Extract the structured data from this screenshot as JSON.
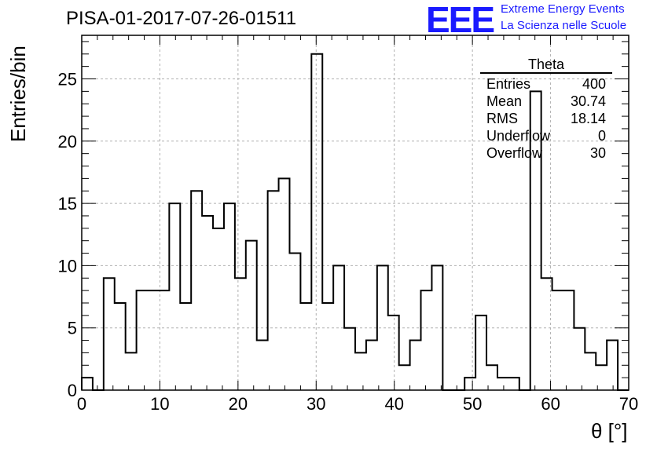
{
  "header": {
    "title": "PISA-01-2017-07-26-01511",
    "logo_text": "EEE",
    "brand_line1": "Extreme Energy Events",
    "brand_line2": "La Scienza nelle Scuole",
    "logo_color": "#1a1aff"
  },
  "stats_box": {
    "name": "Theta",
    "rows": [
      {
        "label": "Entries",
        "value": "400"
      },
      {
        "label": "Mean",
        "value": "30.74"
      },
      {
        "label": "RMS",
        "value": "18.14"
      },
      {
        "label": "Underflow",
        "value": "0"
      },
      {
        "label": "Overflow",
        "value": "30"
      }
    ]
  },
  "chart_data": {
    "type": "bar",
    "histogram": true,
    "xlabel": "θ [°]",
    "ylabel": "Entries/bin",
    "xlim": [
      0,
      70
    ],
    "ylim": [
      0,
      28.5
    ],
    "grid": true,
    "bin_width": 1.4,
    "bin_edges": [
      0,
      1.4,
      2.8,
      4.2,
      5.6,
      7.0,
      8.4,
      9.8,
      11.2,
      12.6,
      14.0,
      15.4,
      16.8,
      18.2,
      19.6,
      21.0,
      22.4,
      23.8,
      25.2,
      26.6,
      28.0,
      29.4,
      30.8,
      32.2,
      33.6,
      35.0,
      36.4,
      37.8,
      39.2,
      40.6,
      42.0,
      43.4,
      44.8,
      46.2,
      47.6,
      49.0,
      50.4,
      51.8,
      53.2,
      54.6,
      56.0,
      57.4,
      58.8,
      60.2,
      61.6,
      63.0,
      64.4,
      65.8,
      67.2,
      68.6,
      70.0
    ],
    "values": [
      1,
      0,
      9,
      7,
      3,
      8,
      8,
      8,
      15,
      7,
      16,
      14,
      13,
      15,
      9,
      12,
      4,
      16,
      17,
      11,
      7,
      27,
      7,
      10,
      5,
      3,
      4,
      10,
      6,
      2,
      4,
      8,
      10,
      0,
      0,
      1,
      6,
      2,
      1,
      1,
      0,
      24,
      9,
      8,
      8,
      5,
      3,
      2,
      4,
      0
    ],
    "xticks": [
      0,
      10,
      20,
      30,
      40,
      50,
      60,
      70
    ],
    "yticks": [
      0,
      5,
      10,
      15,
      20,
      25
    ],
    "line_color": "#000000",
    "grid_color": "#b0b0b0"
  }
}
